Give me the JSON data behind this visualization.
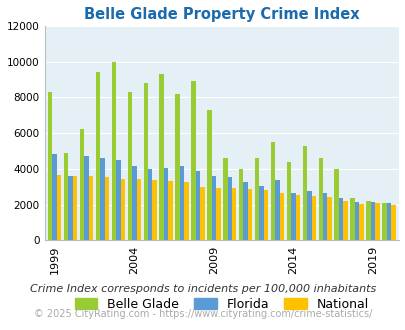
{
  "title": "Belle Glade Property Crime Index",
  "subtitle": "Crime Index corresponds to incidents per 100,000 inhabitants",
  "footer": "© 2025 CityRating.com - https://www.cityrating.com/crime-statistics/",
  "years": [
    1999,
    2000,
    2001,
    2002,
    2003,
    2004,
    2005,
    2006,
    2007,
    2008,
    2009,
    2010,
    2011,
    2012,
    2013,
    2014,
    2015,
    2016,
    2017,
    2018,
    2019,
    2020
  ],
  "belle_glade": [
    8300,
    4900,
    6250,
    9400,
    10000,
    8300,
    8800,
    9300,
    8200,
    8900,
    7300,
    4600,
    4000,
    4600,
    5500,
    4400,
    5300,
    4600,
    4000,
    2400,
    2200,
    2100
  ],
  "florida": [
    4850,
    3600,
    4700,
    4600,
    4500,
    4150,
    4000,
    4050,
    4150,
    3900,
    3600,
    3550,
    3250,
    3050,
    3400,
    2650,
    2750,
    2650,
    2400,
    2150,
    2150,
    2100
  ],
  "national": [
    3650,
    3600,
    3600,
    3550,
    3450,
    3450,
    3400,
    3300,
    3250,
    3000,
    2950,
    2950,
    2850,
    2800,
    2650,
    2550,
    2500,
    2450,
    2200,
    2050,
    2100,
    2000
  ],
  "colors": {
    "belle_glade": "#99cc33",
    "florida": "#5b9bd5",
    "national": "#ffc000"
  },
  "plot_bg": "#e4f0f5",
  "ylim": [
    0,
    12000
  ],
  "yticks": [
    0,
    2000,
    4000,
    6000,
    8000,
    10000,
    12000
  ],
  "xtick_years": [
    1999,
    2004,
    2009,
    2014,
    2019
  ],
  "title_color": "#1a6aad",
  "subtitle_color": "#333333",
  "footer_color": "#aaaaaa",
  "legend_fontsize": 9,
  "subtitle_fontsize": 8,
  "footer_fontsize": 7
}
